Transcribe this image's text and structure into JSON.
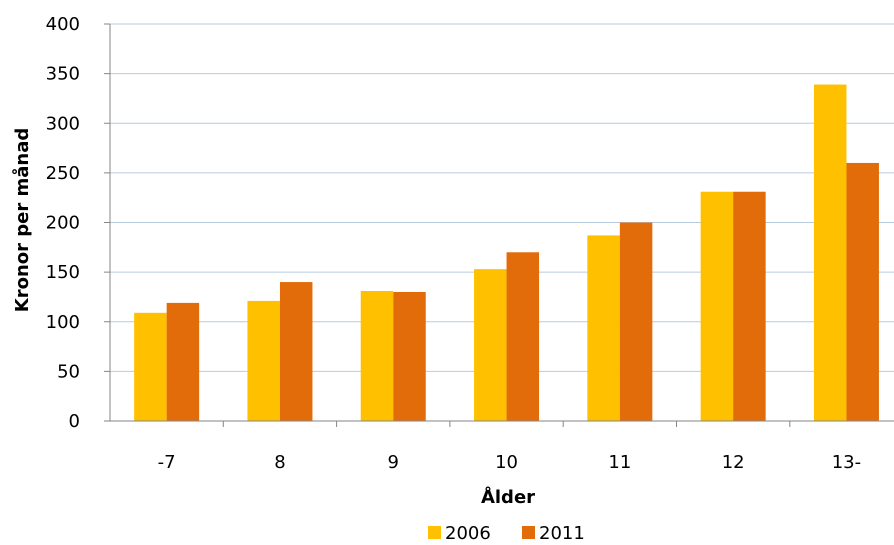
{
  "chart_data": {
    "type": "bar",
    "categories": [
      "-7",
      "8",
      "9",
      "10",
      "11",
      "12",
      "13-"
    ],
    "series": [
      {
        "name": "2006",
        "color": "#FFC000",
        "values": [
          109,
          121,
          131,
          153,
          187,
          231,
          339
        ]
      },
      {
        "name": "2011",
        "color": "#E36C0A",
        "values": [
          119,
          140,
          130,
          170,
          200,
          231,
          260
        ]
      }
    ],
    "title": "",
    "xlabel": "Ålder",
    "ylabel": "Kronor per månad",
    "ylim": [
      0,
      400
    ],
    "yticks": [
      0,
      50,
      100,
      150,
      200,
      250,
      300,
      350,
      400
    ],
    "grid": true,
    "gridline_color": "#B7CBE0",
    "legend_position": "bottom"
  }
}
